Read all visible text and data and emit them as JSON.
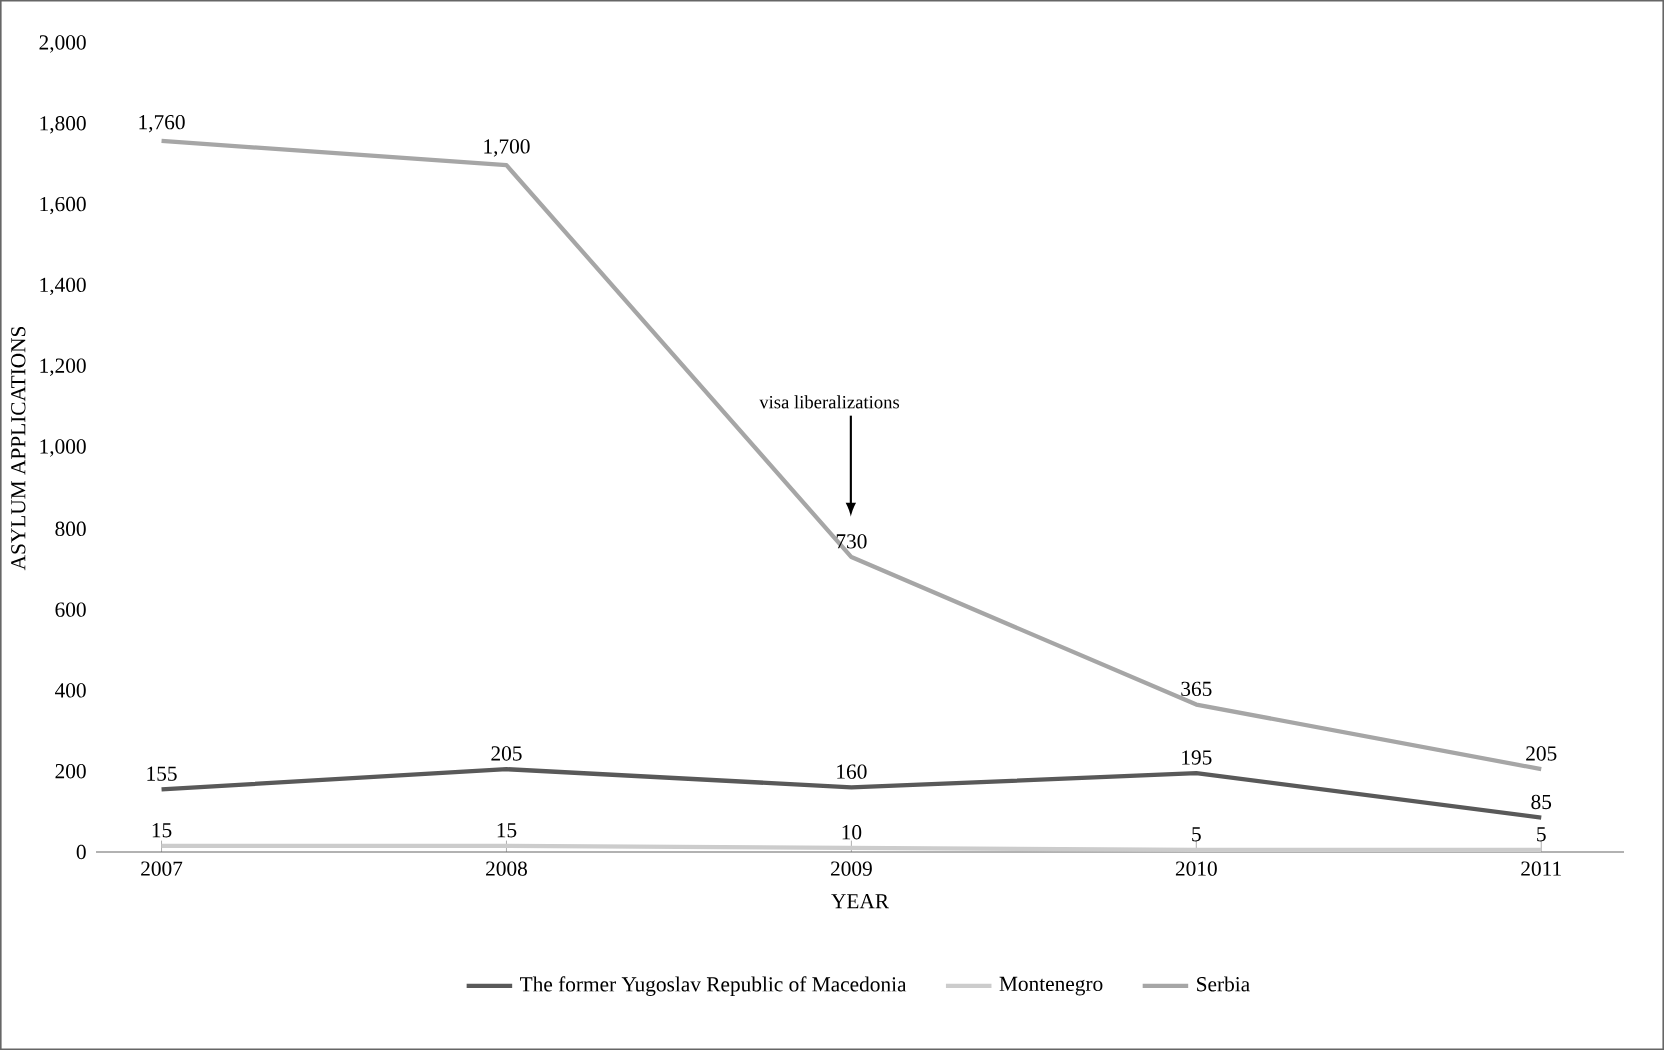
{
  "chart_data": {
    "type": "line",
    "xlabel": "YEAR",
    "ylabel": "ASYLUM APPLICATIONS",
    "categories": [
      "2007",
      "2008",
      "2009",
      "2010",
      "2011"
    ],
    "series": [
      {
        "name": "The former Yugoslav Republic of Macedonia",
        "color": "#595959",
        "values": [
          155,
          205,
          160,
          195,
          85
        ],
        "value_labels": [
          "155",
          "205",
          "160",
          "195",
          "85"
        ]
      },
      {
        "name": "Montenegro",
        "color": "#cccccc",
        "values": [
          15,
          15,
          10,
          5,
          5
        ],
        "value_labels": [
          "15",
          "15",
          "10",
          "5",
          "5"
        ]
      },
      {
        "name": "Serbia",
        "color": "#a6a6a6",
        "values": [
          1760,
          1700,
          730,
          365,
          205
        ],
        "value_labels": [
          "1,760",
          "1,700",
          "730",
          "365",
          "205"
        ]
      }
    ],
    "ylim": [
      0,
      2000
    ],
    "yticks": [
      0,
      200,
      400,
      600,
      800,
      {
        "value": 1000,
        "label": "1,000"
      },
      {
        "value": 1200,
        "label": "1,200"
      },
      {
        "value": 1400,
        "label": "1,400"
      },
      {
        "value": 1600,
        "label": "1,600"
      },
      {
        "value": 1800,
        "label": "1,800"
      },
      {
        "value": 2000,
        "label": "2,000"
      }
    ],
    "grid": false,
    "legend": "bottom",
    "marker": "none",
    "line_style": "solid",
    "annotations": [
      "visa liberalizations"
    ]
  }
}
